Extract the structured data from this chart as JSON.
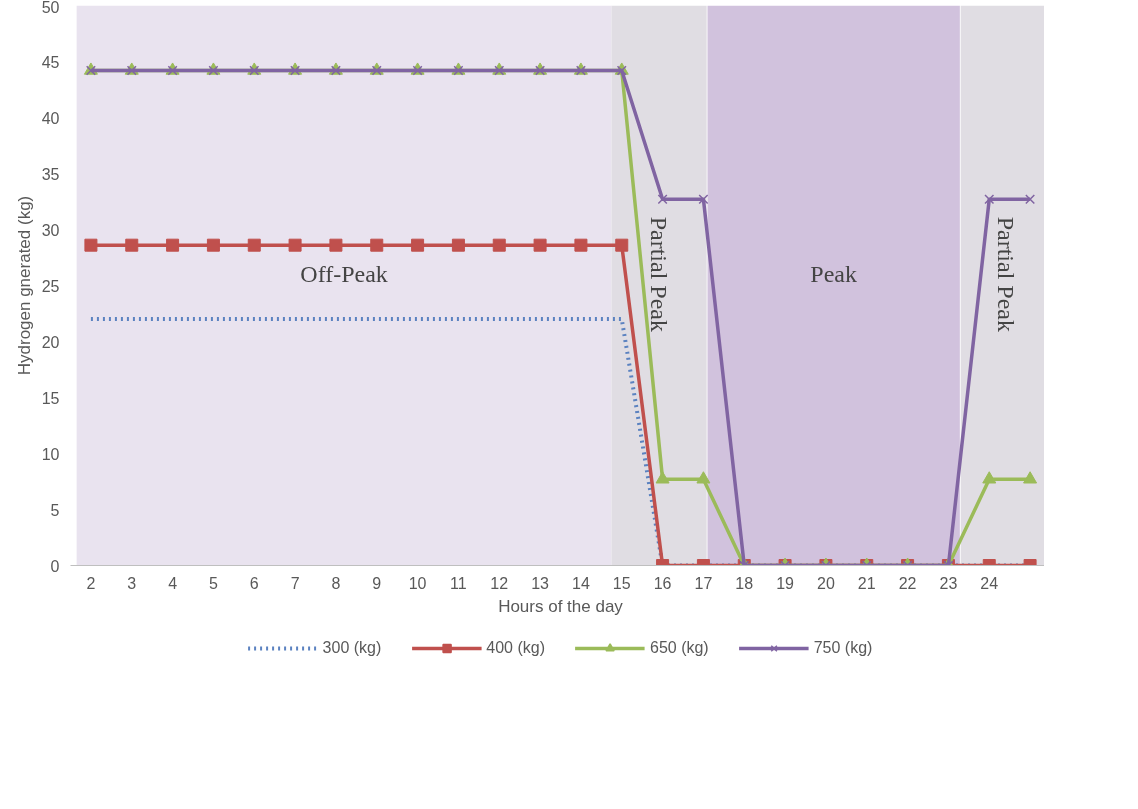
{
  "chart_data": {
    "type": "line",
    "xlabel": "Hours of the day",
    "ylabel": "Hydrogen gnerated (kg)",
    "x": [
      2,
      3,
      4,
      5,
      6,
      7,
      8,
      9,
      10,
      11,
      12,
      13,
      14,
      15,
      16,
      17,
      18,
      19,
      20,
      21,
      22,
      23,
      24,
      25
    ],
    "xlim": [
      1.5,
      25.5
    ],
    "xticks": [
      2,
      3,
      4,
      5,
      6,
      7,
      8,
      9,
      10,
      11,
      12,
      13,
      14,
      15,
      16,
      17,
      18,
      19,
      20,
      21,
      22,
      23,
      24
    ],
    "ylim": [
      0,
      50
    ],
    "yticks": [
      0,
      5,
      10,
      15,
      20,
      25,
      30,
      35,
      40,
      45,
      50
    ],
    "series": [
      {
        "name": "300 (kg)",
        "color": "#5b82c0",
        "line_style": "dotted",
        "marker": "none",
        "values": [
          22,
          22,
          22,
          22,
          22,
          22,
          22,
          22,
          22,
          22,
          22,
          22,
          22,
          22,
          0,
          0,
          0,
          0,
          0,
          0,
          0,
          0,
          0,
          0
        ]
      },
      {
        "name": "400 (kg)",
        "color": "#c0504d",
        "line_style": "solid",
        "marker": "square",
        "values": [
          28.6,
          28.6,
          28.6,
          28.6,
          28.6,
          28.6,
          28.6,
          28.6,
          28.6,
          28.6,
          28.6,
          28.6,
          28.6,
          28.6,
          0,
          0,
          0,
          0,
          0,
          0,
          0,
          0,
          0,
          0
        ]
      },
      {
        "name": "650 (kg)",
        "color": "#9bbb59",
        "line_style": "solid",
        "marker": "triangle",
        "values": [
          44.2,
          44.2,
          44.2,
          44.2,
          44.2,
          44.2,
          44.2,
          44.2,
          44.2,
          44.2,
          44.2,
          44.2,
          44.2,
          44.2,
          7.7,
          7.7,
          0,
          0,
          0,
          0,
          0,
          0,
          7.7,
          7.7
        ]
      },
      {
        "name": "750 (kg)",
        "color": "#8064a2",
        "line_style": "solid",
        "marker": "cross",
        "values": [
          44.2,
          44.2,
          44.2,
          44.2,
          44.2,
          44.2,
          44.2,
          44.2,
          44.2,
          44.2,
          44.2,
          44.2,
          44.2,
          44.2,
          32.7,
          32.7,
          0,
          0,
          0,
          0,
          0,
          0,
          32.7,
          32.7
        ]
      }
    ],
    "bands": [
      {
        "axis": "x",
        "from": 1.65,
        "to": 14.75,
        "label": "Off-Peak",
        "color": "#e9e3ef"
      },
      {
        "axis": "x",
        "from": 14.75,
        "to": 17.08,
        "label": "Partial Peak",
        "color": "#e0dde3"
      },
      {
        "axis": "x",
        "from": 17.1,
        "to": 23.28,
        "label": "Peak",
        "color": "#d1c2dd"
      },
      {
        "axis": "x",
        "from": 23.3,
        "to": 25.5,
        "label": "Partial Peak",
        "color": "#e0dde3"
      }
    ],
    "grid": false,
    "legend": "bottom"
  }
}
